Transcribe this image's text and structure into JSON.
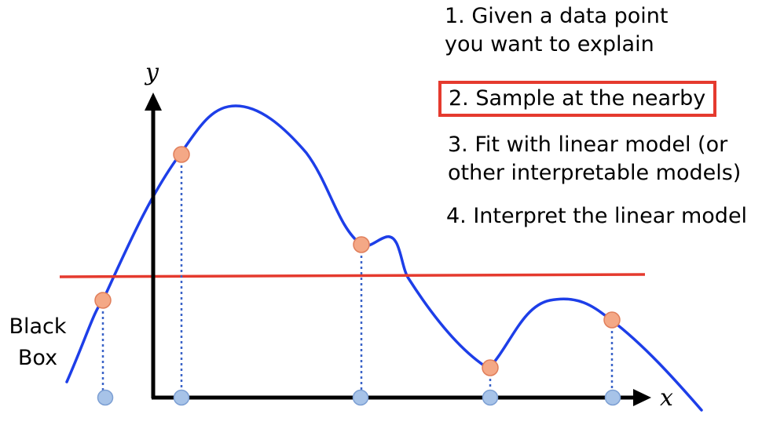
{
  "steps": [
    {
      "lines": [
        "1. Given a data point",
        "you want to explain"
      ],
      "highlighted": false
    },
    {
      "lines": [
        "2. Sample at the nearby"
      ],
      "highlighted": true
    },
    {
      "lines": [
        "3. Fit with linear model (or",
        "other interpretable models)"
      ],
      "highlighted": false
    },
    {
      "lines": [
        "4. Interpret the linear model"
      ],
      "highlighted": false
    }
  ],
  "black_box_label": [
    "Black",
    "Box"
  ],
  "axes": {
    "x_label": "x",
    "y_label": "y"
  },
  "colors": {
    "curve": "#1d3ee8",
    "linear_fit": "#e53a2e",
    "sample_point_on_curve": "#f4a886",
    "sample_point_on_axis": "#a7c3e8",
    "highlight_box": "#e53a2e"
  }
}
